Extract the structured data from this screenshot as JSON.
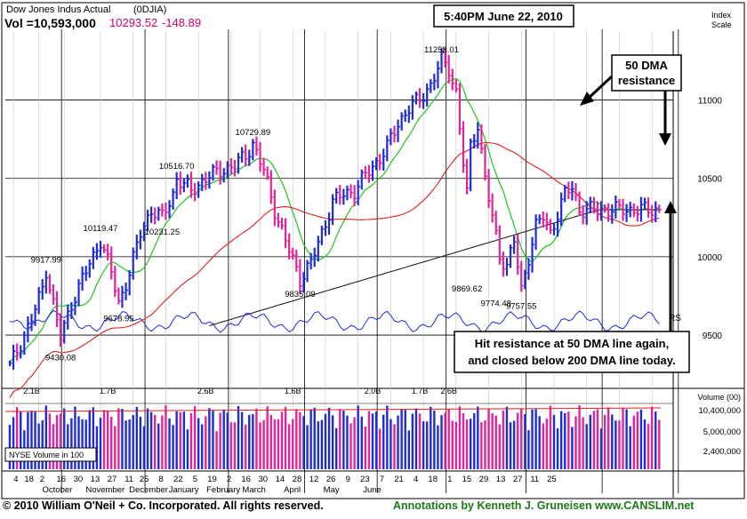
{
  "header": {
    "title": "Dow Jones Indus Actual",
    "ticker": "(0DJIA)",
    "vol_label": "Vol =10,593,000",
    "last_price": "10293.52",
    "change": "-148.89",
    "timestamp": "5:40PM June 22, 2010"
  },
  "footer": {
    "copyright": "© 2010 William O'Neil + Co. Incorporated. All rights reserved.",
    "annotation_credit": "Annotations by Kenneth J. Gruneisen www.CANSLIM.net"
  },
  "annotations": {
    "dma50_resistance": [
      "50 DMA",
      "resistance"
    ],
    "hit_resistance": [
      "Hit resistance at 50 DMA line again,",
      "and closed below 200 DMA line today."
    ]
  },
  "colors": {
    "up_bar": "#1e2bd6",
    "down_bar": "#e0249a",
    "ma50": "#1ec41e",
    "ma200": "#e02020",
    "ma_long": "#222222",
    "rs": "#1e2bd6",
    "price_change": "#cc0077",
    "footer_left": "#000000",
    "footer_right": "#1a7a1a",
    "grid": "#000000"
  },
  "chart_data": {
    "type": "stock-ohlc",
    "index_scale_label": [
      "Index",
      "Scale"
    ],
    "y_ticks": [
      9500,
      10000,
      10500,
      11000
    ],
    "ylim": [
      9160,
      11440
    ],
    "volume_label": "Volume (00)",
    "volume_ticks": [
      {
        "value": 10400000,
        "label": "10,400,000"
      },
      {
        "value": 5000000,
        "label": "5,000,000"
      },
      {
        "value": 2400000,
        "label": "2,400,000"
      }
    ],
    "volume_peak_labels": [
      {
        "label": "2.1B",
        "bar": 6
      },
      {
        "label": "1.7B",
        "bar": 27
      },
      {
        "label": "2.6B",
        "bar": 54
      },
      {
        "label": "1.6B",
        "bar": 78
      },
      {
        "label": "2.0B",
        "bar": 100
      },
      {
        "label": "1.7B",
        "bar": 113
      },
      {
        "label": "2.6B",
        "bar": 121
      }
    ],
    "volume_legend": "NYSE Volume in 100",
    "rs_label": "RS",
    "price_labels": [
      {
        "label": "9917.99",
        "bar": 10,
        "value": 9917.99,
        "pos": "above"
      },
      {
        "label": "9430.08",
        "bar": 14,
        "value": 9430.08,
        "pos": "below"
      },
      {
        "label": "10119.47",
        "bar": 25,
        "value": 10119.47,
        "pos": "above"
      },
      {
        "label": "9678.95",
        "bar": 30,
        "value": 9678.95,
        "pos": "below"
      },
      {
        "label": "10516.70",
        "bar": 46,
        "value": 10516.7,
        "pos": "above"
      },
      {
        "label": "10231.25",
        "bar": 42,
        "value": 10231.25,
        "pos": "below"
      },
      {
        "label": "10729.89",
        "bar": 67,
        "value": 10729.89,
        "pos": "above"
      },
      {
        "label": "9835.09",
        "bar": 80,
        "value": 9835.09,
        "pos": "below"
      },
      {
        "label": "11258.01",
        "bar": 119,
        "value": 11258.01,
        "pos": "above"
      },
      {
        "label": "9869.62",
        "bar": 126,
        "value": 9869.62,
        "pos": "below"
      },
      {
        "label": "9774.48",
        "bar": 134,
        "value": 9774.48,
        "pos": "below"
      },
      {
        "label": "9757.55",
        "bar": 141,
        "value": 9757.55,
        "pos": "below"
      }
    ],
    "x_ticks": [
      {
        "label": "4",
        "bar": 1
      },
      {
        "label": "18",
        "bar": 8
      },
      {
        "label": "2",
        "bar": 15
      },
      {
        "label": "16",
        "bar": 25
      },
      {
        "label": "30",
        "bar": 34
      },
      {
        "label": "13",
        "bar": 43
      },
      {
        "label": "27",
        "bar": 52
      },
      {
        "label": "11",
        "bar": 61
      },
      {
        "label": "25",
        "bar": 69
      },
      {
        "label": "8",
        "bar": 78
      },
      {
        "label": "22",
        "bar": 87
      },
      {
        "label": "5",
        "bar": 96
      },
      {
        "label": "19",
        "bar": 105
      },
      {
        "label": "2",
        "bar": 114
      },
      {
        "label": "16",
        "bar": 123
      },
      {
        "label": "30",
        "bar": 132
      },
      {
        "label": "14",
        "bar": 141
      },
      {
        "label": "28",
        "bar": 150
      },
      {
        "label": "12",
        "bar": 159
      },
      {
        "label": "26",
        "bar": 168
      },
      {
        "label": "9",
        "bar": 177
      },
      {
        "label": "23",
        "bar": 186
      },
      {
        "label": "7",
        "bar": 195
      },
      {
        "label": "21",
        "bar": 204
      },
      {
        "label": "4",
        "bar": 213
      },
      {
        "label": "18",
        "bar": 222
      },
      {
        "label": "1",
        "bar": 231
      },
      {
        "label": "15",
        "bar": 240
      },
      {
        "label": "29",
        "bar": 249
      },
      {
        "label": "13",
        "bar": 258
      },
      {
        "label": "27",
        "bar": 267
      },
      {
        "label": "11",
        "bar": 276
      },
      {
        "label": "25",
        "bar": 285
      }
    ],
    "month_labels": [
      {
        "label": "October",
        "bar": 15
      },
      {
        "label": "November",
        "bar": 38
      },
      {
        "label": "December",
        "bar": 61
      },
      {
        "label": "January",
        "bar": 82
      },
      {
        "label": "February",
        "bar": 102
      },
      {
        "label": "March",
        "bar": 121
      },
      {
        "label": "April",
        "bar": 143
      },
      {
        "label": "May",
        "bar": 164
      },
      {
        "label": "June",
        "bar": 185
      }
    ],
    "bars_count": 184,
    "price_anchors": [
      [
        0,
        9300
      ],
      [
        3,
        9450
      ],
      [
        6,
        9600
      ],
      [
        9,
        9800
      ],
      [
        10,
        9918
      ],
      [
        12,
        9700
      ],
      [
        14,
        9480
      ],
      [
        17,
        9700
      ],
      [
        20,
        9860
      ],
      [
        23,
        10000
      ],
      [
        25,
        10110
      ],
      [
        28,
        9900
      ],
      [
        30,
        9700
      ],
      [
        33,
        9900
      ],
      [
        36,
        10150
      ],
      [
        39,
        10300
      ],
      [
        42,
        10250
      ],
      [
        45,
        10400
      ],
      [
        46,
        10500
      ],
      [
        50,
        10420
      ],
      [
        54,
        10500
      ],
      [
        58,
        10550
      ],
      [
        62,
        10580
      ],
      [
        65,
        10650
      ],
      [
        67,
        10720
      ],
      [
        70,
        10550
      ],
      [
        73,
        10300
      ],
      [
        76,
        10100
      ],
      [
        80,
        9860
      ],
      [
        83,
        9960
      ],
      [
        86,
        10150
      ],
      [
        89,
        10350
      ],
      [
        92,
        10400
      ],
      [
        95,
        10420
      ],
      [
        98,
        10520
      ],
      [
        101,
        10600
      ],
      [
        104,
        10700
      ],
      [
        107,
        10850
      ],
      [
        110,
        10950
      ],
      [
        113,
        11000
      ],
      [
        116,
        11100
      ],
      [
        119,
        11250
      ],
      [
        121,
        11200
      ],
      [
        123,
        11050
      ],
      [
        125,
        10600
      ],
      [
        126,
        10400
      ],
      [
        127,
        10700
      ],
      [
        129,
        10850
      ],
      [
        131,
        10500
      ],
      [
        133,
        10250
      ],
      [
        135,
        10000
      ],
      [
        137,
        9950
      ],
      [
        139,
        10100
      ],
      [
        141,
        9780
      ],
      [
        143,
        10000
      ],
      [
        145,
        10200
      ],
      [
        147,
        10250
      ],
      [
        149,
        10150
      ],
      [
        151,
        10280
      ],
      [
        153,
        10400
      ],
      [
        155,
        10440
      ],
      [
        157,
        10300
      ]
    ]
  }
}
